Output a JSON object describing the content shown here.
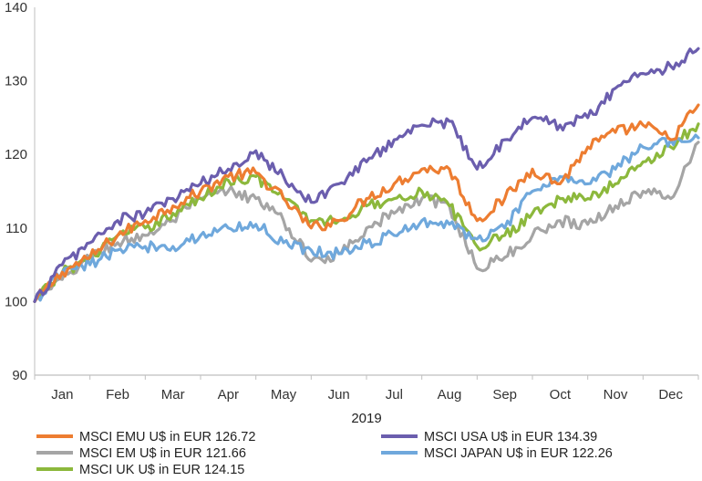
{
  "chart_data": {
    "type": "line",
    "title": "",
    "xlabel": "2019",
    "ylabel": "",
    "ylim": [
      90,
      140
    ],
    "yticks": [
      90,
      100,
      110,
      120,
      130,
      140
    ],
    "grid": false,
    "legend_position": "bottom",
    "categories": [
      "Jan",
      "Feb",
      "Mar",
      "Apr",
      "May",
      "Jun",
      "Jul",
      "Aug",
      "Sep",
      "Oct",
      "Nov",
      "Dec"
    ],
    "x": [
      0,
      0.5,
      1,
      1.5,
      2,
      2.5,
      3,
      3.5,
      4,
      4.5,
      5,
      5.5,
      6,
      6.5,
      7,
      7.5,
      8,
      8.5,
      9,
      9.5,
      10,
      10.5,
      11,
      11.5,
      12
    ],
    "series": [
      {
        "name": "MSCI EMU U$ in EUR 126.72",
        "color": "#ED7D31",
        "values": [
          100,
          104,
          106,
          109,
          111,
          113,
          115,
          117,
          117.5,
          114,
          110,
          111,
          114,
          116,
          118,
          118,
          111,
          114,
          118,
          116,
          121,
          123,
          124,
          122,
          126.72
        ]
      },
      {
        "name": "MSCI EM U$ in EUR 121.66",
        "color": "#A5A5A5",
        "values": [
          100,
          103,
          106,
          108,
          109,
          111,
          114,
          115,
          114,
          111,
          105.5,
          106.5,
          110,
          112,
          114,
          113,
          104.5,
          106,
          109,
          111,
          110.5,
          113,
          115,
          114,
          121.66
        ]
      },
      {
        "name": "MSCI UK U$ in EUR 124.15",
        "color": "#8CB83C",
        "values": [
          100,
          104,
          106,
          109,
          110,
          112,
          114,
          116.5,
          117,
          114,
          111,
          111,
          113,
          114,
          115,
          113,
          107.5,
          109,
          112,
          114,
          114,
          116,
          119,
          121,
          124.15
        ]
      },
      {
        "name": "MSCI USA U$ in EUR 134.39",
        "color": "#6B5EAE",
        "values": [
          100,
          105,
          108,
          111,
          112,
          114,
          116,
          118,
          120.5,
          117,
          113.5,
          116,
          119,
          122,
          124,
          124.5,
          118,
          122,
          125,
          124,
          125,
          129,
          131,
          132,
          134.39
        ]
      },
      {
        "name": "MSCI JAPAN U$ in EUR 122.26",
        "color": "#6FA8DC",
        "values": [
          100,
          104,
          105,
          107,
          107.5,
          107.5,
          109,
          110,
          110.5,
          108,
          107,
          106.5,
          108,
          109,
          111,
          110.5,
          108.5,
          110,
          115,
          117,
          116,
          118,
          121,
          122,
          122.26
        ]
      }
    ]
  }
}
